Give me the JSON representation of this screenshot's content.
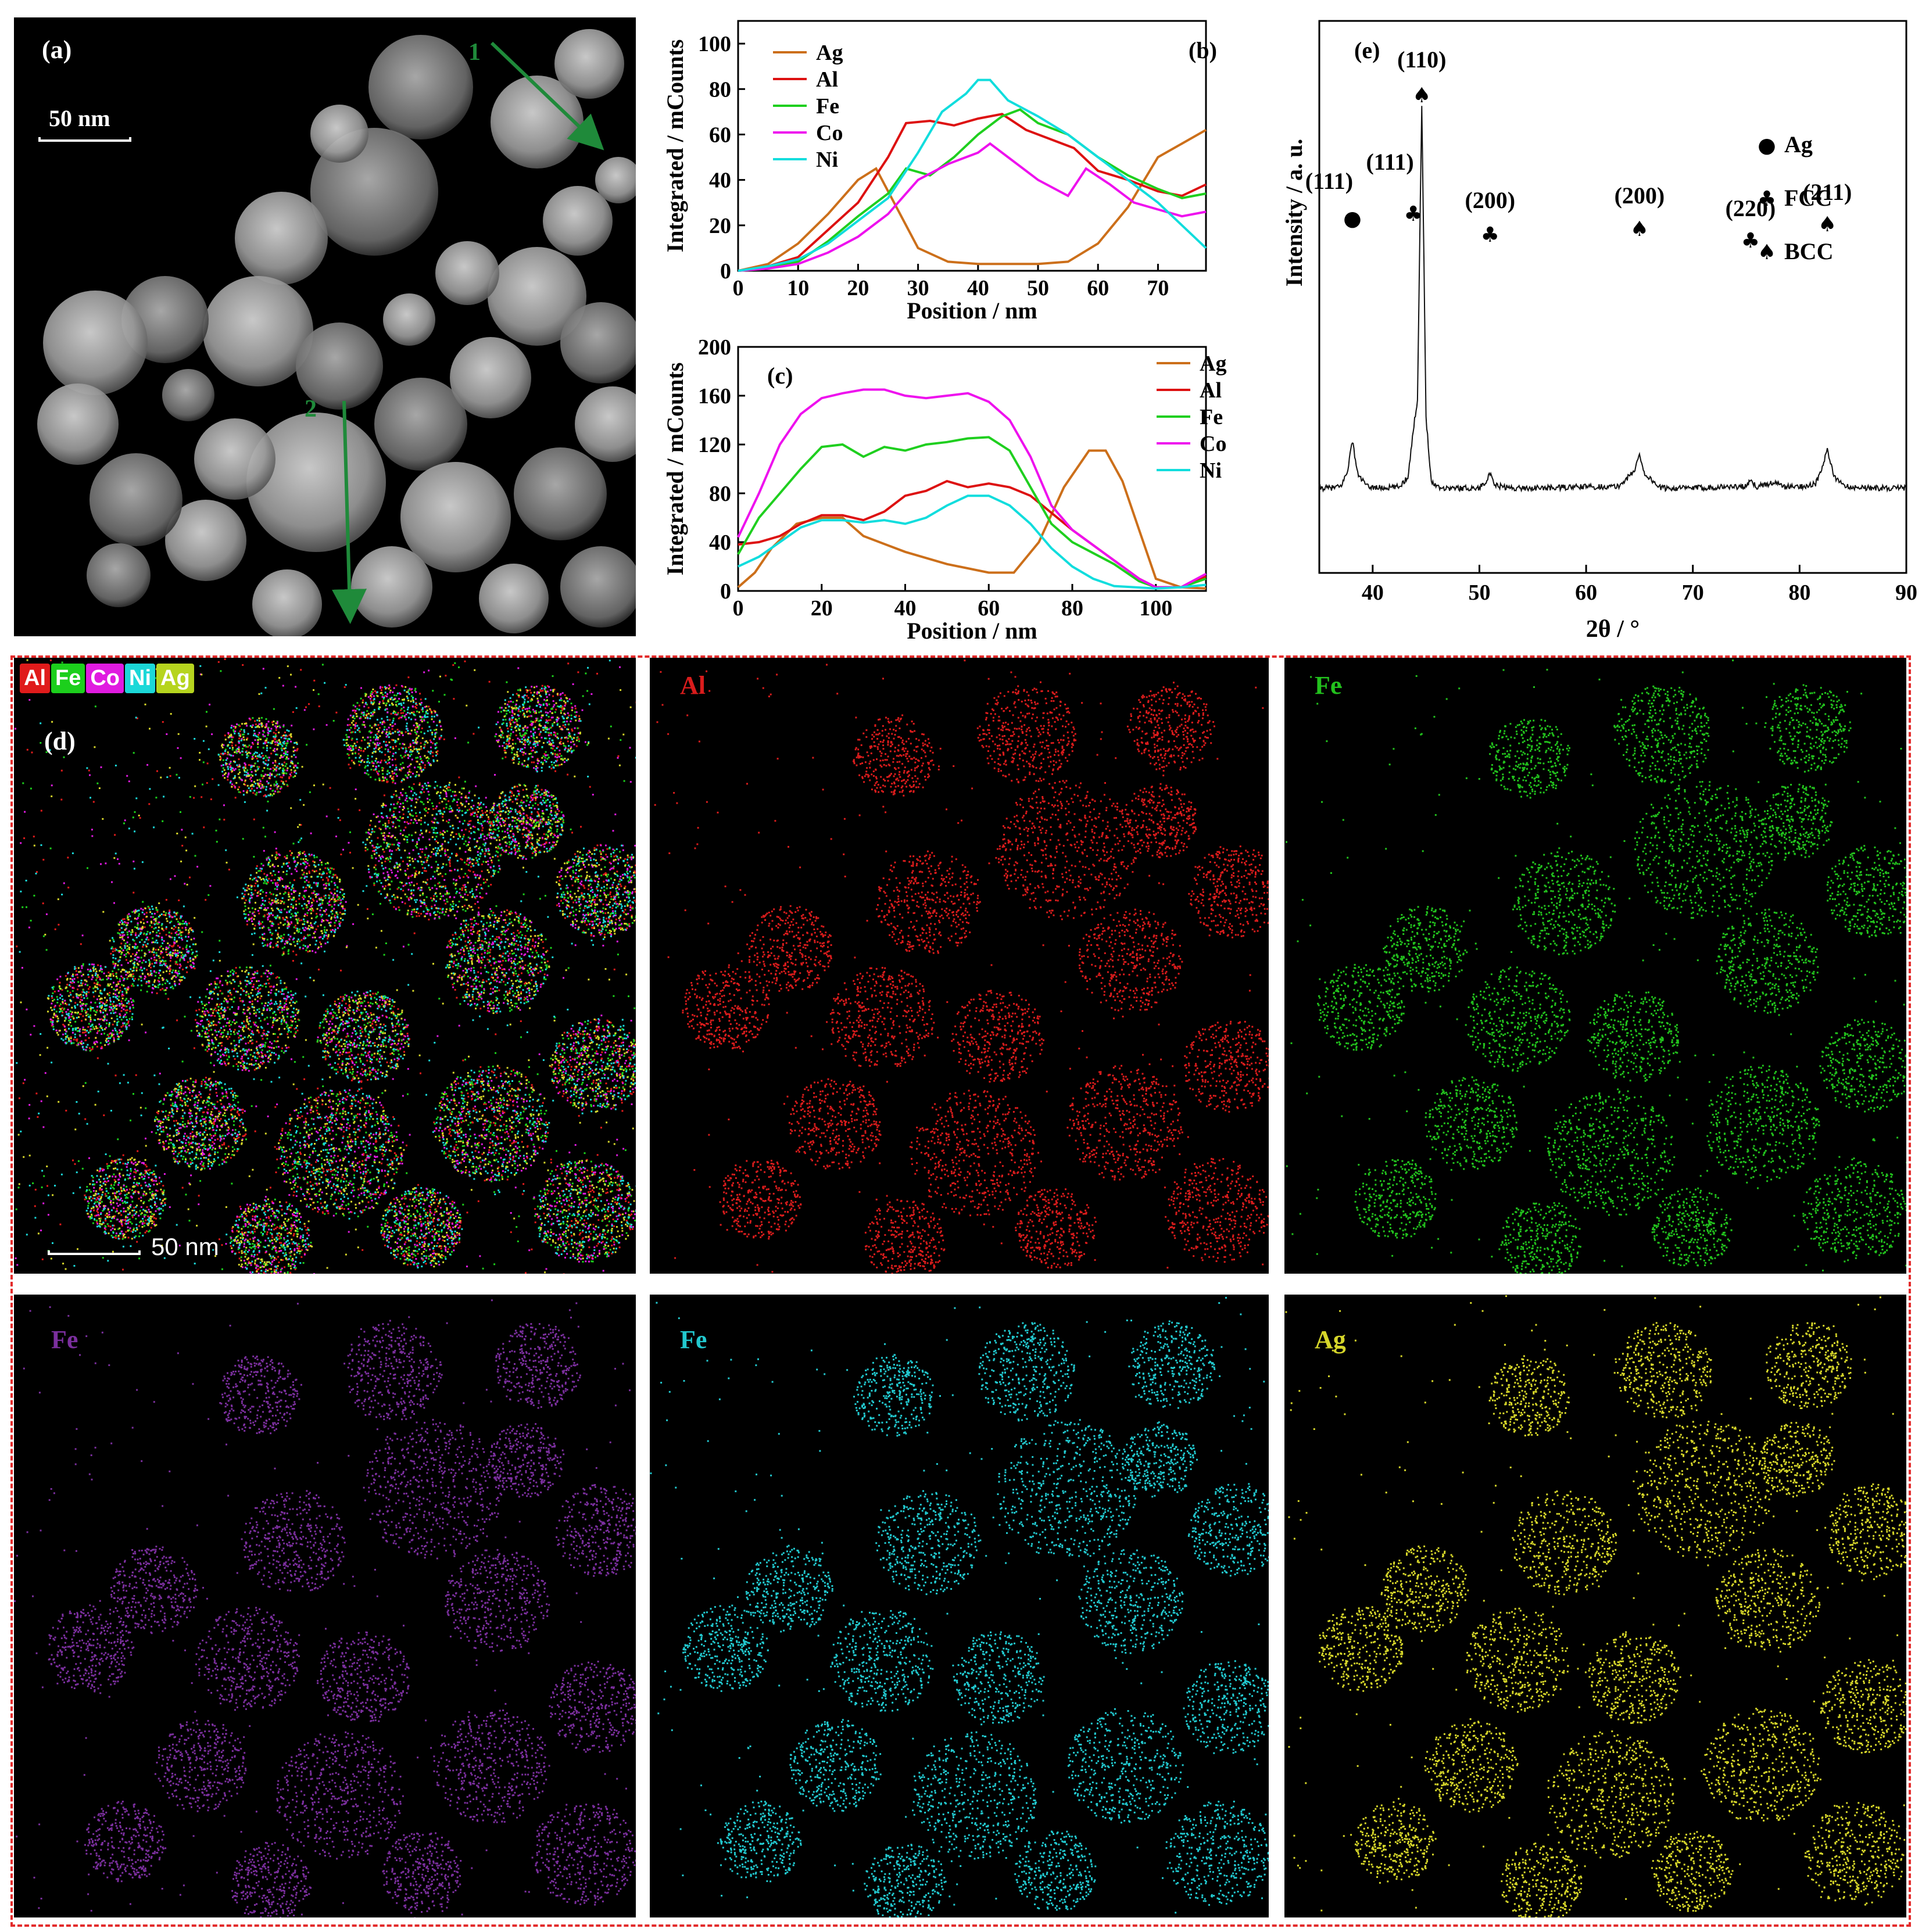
{
  "panel_a": {
    "label": "(a)",
    "scale": "50 nm",
    "arrow1": "1",
    "arrow2": "2"
  },
  "panel_b": {
    "label": "(b)",
    "ylabel": "Integrated / mCounts",
    "xlabel": "Position / nm",
    "yticks": [
      "0",
      "20",
      "40",
      "60",
      "80",
      "100"
    ],
    "xticks": [
      "0",
      "10",
      "20",
      "30",
      "40",
      "50",
      "60",
      "70"
    ],
    "legend": [
      "Ag",
      "Al",
      "Fe",
      "Co",
      "Ni"
    ]
  },
  "panel_c": {
    "label": "(c)",
    "ylabel": "Integrated / mCounts",
    "xlabel": "Position / nm",
    "yticks": [
      "0",
      "40",
      "80",
      "120",
      "160",
      "200"
    ],
    "xticks": [
      "0",
      "20",
      "40",
      "60",
      "80",
      "100"
    ],
    "legend": [
      "Ag",
      "Al",
      "Fe",
      "Co",
      "Ni"
    ]
  },
  "panel_e": {
    "label": "(e)",
    "ylabel": "Intensity / a. u.",
    "xlabel": "2θ / °",
    "xticks": [
      "40",
      "50",
      "60",
      "70",
      "80",
      "90"
    ],
    "legend": [
      {
        "symbol": "●",
        "text": "Ag"
      },
      {
        "symbol": "♣",
        "text": "FCC"
      },
      {
        "symbol": "♠",
        "text": "BCC"
      }
    ],
    "peaks": [
      {
        "hkl": "(111)",
        "symbol": "●"
      },
      {
        "hkl": "(111)",
        "symbol": "♣"
      },
      {
        "hkl": "(110)",
        "symbol": "♠"
      },
      {
        "hkl": "(200)",
        "symbol": "♣"
      },
      {
        "hkl": "(200)",
        "symbol": "♠"
      },
      {
        "hkl": "(220)",
        "symbol": "♣"
      },
      {
        "hkl": "(211)",
        "symbol": "♠"
      }
    ]
  },
  "panel_d": {
    "label": "(d)",
    "chips": [
      "Al",
      "Fe",
      "Co",
      "Ni",
      "Ag"
    ],
    "scale": "50 nm",
    "maps": [
      {
        "title": "Al",
        "color": "#d91c1c"
      },
      {
        "title": "Fe",
        "color": "#22c11d"
      },
      {
        "title": "Fe",
        "color": "#7b2f9e"
      },
      {
        "title": "Fe",
        "color": "#22c9cf"
      },
      {
        "title": "Ag",
        "color": "#d6d62a"
      }
    ]
  },
  "colors": {
    "Ag": "#cc6f1a",
    "Al": "#dd1111",
    "Fe": "#1fcf1f",
    "Co": "#ee11ee",
    "Ni": "#11dddd"
  },
  "chart_data": [
    {
      "type": "line",
      "panel": "(b)",
      "xlabel": "Position / nm",
      "ylabel": "Integrated / mCounts",
      "xlim": [
        0,
        78
      ],
      "ylim": [
        0,
        110
      ],
      "series": [
        {
          "name": "Ag",
          "x": [
            0,
            5,
            10,
            15,
            20,
            23,
            26,
            30,
            35,
            40,
            45,
            50,
            55,
            60,
            65,
            70,
            74,
            78
          ],
          "y": [
            0,
            3,
            12,
            25,
            40,
            45,
            30,
            10,
            4,
            3,
            3,
            3,
            4,
            12,
            28,
            50,
            56,
            62
          ]
        },
        {
          "name": "Al",
          "x": [
            0,
            5,
            10,
            15,
            20,
            25,
            28,
            32,
            36,
            40,
            44,
            48,
            52,
            56,
            60,
            65,
            70,
            74,
            78
          ],
          "y": [
            0,
            2,
            6,
            18,
            30,
            50,
            65,
            66,
            64,
            67,
            69,
            62,
            58,
            54,
            44,
            40,
            35,
            33,
            38
          ]
        },
        {
          "name": "Fe",
          "x": [
            0,
            5,
            10,
            15,
            20,
            25,
            28,
            32,
            36,
            40,
            44,
            47,
            50,
            55,
            60,
            65,
            70,
            74,
            78
          ],
          "y": [
            0,
            1,
            4,
            13,
            24,
            34,
            45,
            42,
            50,
            60,
            68,
            71,
            65,
            60,
            50,
            42,
            36,
            32,
            34
          ]
        },
        {
          "name": "Co",
          "x": [
            0,
            5,
            10,
            15,
            20,
            25,
            30,
            35,
            40,
            42,
            45,
            50,
            55,
            58,
            62,
            66,
            70,
            74,
            78
          ],
          "y": [
            0,
            1,
            3,
            8,
            15,
            25,
            40,
            47,
            52,
            56,
            50,
            40,
            33,
            45,
            38,
            30,
            27,
            24,
            26
          ]
        },
        {
          "name": "Ni",
          "x": [
            0,
            5,
            10,
            15,
            20,
            25,
            30,
            34,
            38,
            40,
            42,
            45,
            50,
            55,
            60,
            65,
            70,
            74,
            78
          ],
          "y": [
            0,
            2,
            5,
            12,
            22,
            32,
            52,
            70,
            78,
            84,
            84,
            75,
            68,
            60,
            50,
            40,
            30,
            20,
            10
          ]
        }
      ]
    },
    {
      "type": "line",
      "panel": "(c)",
      "xlabel": "Position / nm",
      "ylabel": "Integrated / mCounts",
      "xlim": [
        0,
        112
      ],
      "ylim": [
        0,
        200
      ],
      "series": [
        {
          "name": "Ag",
          "x": [
            0,
            4,
            8,
            14,
            20,
            25,
            30,
            40,
            50,
            60,
            66,
            72,
            78,
            84,
            88,
            92,
            96,
            100,
            106,
            112
          ],
          "y": [
            3,
            15,
            35,
            55,
            60,
            60,
            45,
            32,
            22,
            15,
            15,
            40,
            85,
            115,
            115,
            90,
            50,
            10,
            3,
            2
          ]
        },
        {
          "name": "Al",
          "x": [
            0,
            5,
            10,
            15,
            20,
            25,
            30,
            35,
            40,
            45,
            50,
            55,
            60,
            65,
            70,
            80,
            90,
            96,
            100,
            106,
            112
          ],
          "y": [
            38,
            40,
            45,
            55,
            62,
            62,
            58,
            65,
            78,
            82,
            90,
            85,
            88,
            85,
            78,
            50,
            25,
            10,
            3,
            3,
            12
          ]
        },
        {
          "name": "Fe",
          "x": [
            0,
            5,
            10,
            15,
            20,
            25,
            30,
            35,
            40,
            45,
            50,
            55,
            60,
            65,
            70,
            75,
            80,
            90,
            96,
            100,
            106,
            112
          ],
          "y": [
            30,
            60,
            80,
            100,
            118,
            120,
            110,
            118,
            115,
            120,
            122,
            125,
            126,
            115,
            85,
            55,
            40,
            22,
            8,
            3,
            3,
            10
          ]
        },
        {
          "name": "Co",
          "x": [
            0,
            5,
            10,
            15,
            20,
            25,
            30,
            35,
            40,
            45,
            50,
            55,
            60,
            65,
            70,
            75,
            80,
            90,
            96,
            100,
            106,
            112
          ],
          "y": [
            44,
            80,
            120,
            145,
            158,
            162,
            165,
            165,
            160,
            158,
            160,
            162,
            155,
            140,
            110,
            70,
            50,
            25,
            10,
            3,
            3,
            14
          ]
        },
        {
          "name": "Ni",
          "x": [
            0,
            5,
            10,
            15,
            20,
            25,
            30,
            35,
            40,
            45,
            50,
            55,
            60,
            65,
            70,
            75,
            80,
            85,
            90,
            100,
            106,
            112
          ],
          "y": [
            20,
            28,
            40,
            52,
            58,
            58,
            56,
            58,
            55,
            60,
            70,
            78,
            78,
            70,
            55,
            35,
            20,
            10,
            4,
            2,
            3,
            5
          ]
        }
      ]
    },
    {
      "type": "line",
      "panel": "(e)",
      "xlabel": "2θ / °",
      "ylabel": "Intensity / a. u.",
      "xlim": [
        35,
        90
      ],
      "x": [
        35,
        36,
        37,
        37.6,
        38.1,
        38.6,
        39.5,
        41,
        42.5,
        43.3,
        43.8,
        44.2,
        44.6,
        45.0,
        45.5,
        46.5,
        48,
        50,
        50.7,
        51.0,
        51.4,
        53,
        56,
        60,
        63,
        64.5,
        65.0,
        65.5,
        67,
        70,
        73,
        75,
        75.4,
        76,
        77,
        77.6,
        78.5,
        80,
        81.5,
        82.2,
        82.6,
        83.2,
        84.5,
        87,
        90
      ],
      "y": [
        14,
        14,
        15,
        25,
        48,
        24,
        15,
        14,
        15,
        22,
        55,
        78,
        290,
        65,
        18,
        14,
        14,
        14,
        20,
        24,
        16,
        14,
        14,
        15,
        15,
        26,
        38,
        24,
        14,
        14,
        15,
        15,
        19,
        15,
        17,
        18,
        15,
        15,
        17,
        30,
        42,
        22,
        15,
        14,
        14
      ]
    }
  ]
}
